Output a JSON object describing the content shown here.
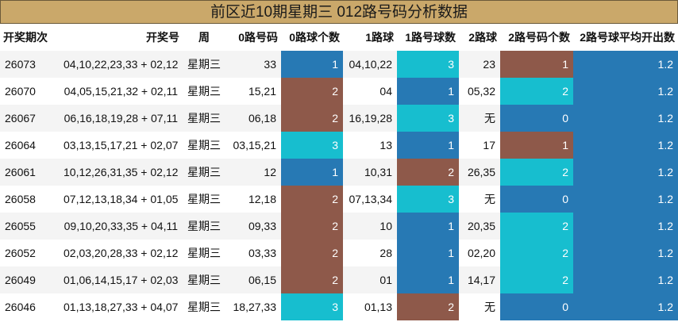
{
  "title": "前区近10期星期三 012路号码分析数据",
  "colors": {
    "title_bg": "#caa86a",
    "blue": "#2779b4",
    "brown": "#8e594a",
    "teal": "#17becf"
  },
  "headers": [
    "开奖期次",
    "开奖号",
    "周",
    "0路号码",
    "0路球个数",
    "1路球",
    "1路号球数",
    "2路球",
    "2路号码个数",
    "2路号球平均开出数"
  ],
  "rows": [
    {
      "issue": "26073",
      "numbers": "04,10,22,23,33 + 02,12",
      "week": "星期三",
      "r0": "33",
      "c0": "1",
      "c0_color": "blue",
      "r1": "04,10,22",
      "c1": "3",
      "c1_color": "teal",
      "r2": "23",
      "c2": "1",
      "c2_color": "brown",
      "avg": "1.2"
    },
    {
      "issue": "26070",
      "numbers": "04,05,15,21,32 + 02,11",
      "week": "星期三",
      "r0": "15,21",
      "c0": "2",
      "c0_color": "brown",
      "r1": "04",
      "c1": "1",
      "c1_color": "blue",
      "r2": "05,32",
      "c2": "2",
      "c2_color": "teal",
      "avg": "1.2"
    },
    {
      "issue": "26067",
      "numbers": "06,16,18,19,28 + 07,11",
      "week": "星期三",
      "r0": "06,18",
      "c0": "2",
      "c0_color": "brown",
      "r1": "16,19,28",
      "c1": "3",
      "c1_color": "teal",
      "r2": "无",
      "c2": "0",
      "c2_color": "blue",
      "avg": "1.2"
    },
    {
      "issue": "26064",
      "numbers": "03,13,15,17,21 + 02,07",
      "week": "星期三",
      "r0": "03,15,21",
      "c0": "3",
      "c0_color": "teal",
      "r1": "13",
      "c1": "1",
      "c1_color": "blue",
      "r2": "17",
      "c2": "1",
      "c2_color": "brown",
      "avg": "1.2"
    },
    {
      "issue": "26061",
      "numbers": "10,12,26,31,35 + 02,12",
      "week": "星期三",
      "r0": "12",
      "c0": "1",
      "c0_color": "blue",
      "r1": "10,31",
      "c1": "2",
      "c1_color": "brown",
      "r2": "26,35",
      "c2": "2",
      "c2_color": "teal",
      "avg": "1.2"
    },
    {
      "issue": "26058",
      "numbers": "07,12,13,18,34 + 01,05",
      "week": "星期三",
      "r0": "12,18",
      "c0": "2",
      "c0_color": "brown",
      "r1": "07,13,34",
      "c1": "3",
      "c1_color": "teal",
      "r2": "无",
      "c2": "0",
      "c2_color": "blue",
      "avg": "1.2"
    },
    {
      "issue": "26055",
      "numbers": "09,10,20,33,35 + 04,11",
      "week": "星期三",
      "r0": "09,33",
      "c0": "2",
      "c0_color": "brown",
      "r1": "10",
      "c1": "1",
      "c1_color": "blue",
      "r2": "20,35",
      "c2": "2",
      "c2_color": "teal",
      "avg": "1.2"
    },
    {
      "issue": "26052",
      "numbers": "02,03,20,28,33 + 02,12",
      "week": "星期三",
      "r0": "03,33",
      "c0": "2",
      "c0_color": "brown",
      "r1": "28",
      "c1": "1",
      "c1_color": "blue",
      "r2": "02,20",
      "c2": "2",
      "c2_color": "teal",
      "avg": "1.2"
    },
    {
      "issue": "26049",
      "numbers": "01,06,14,15,17 + 02,03",
      "week": "星期三",
      "r0": "06,15",
      "c0": "2",
      "c0_color": "brown",
      "r1": "01",
      "c1": "1",
      "c1_color": "blue",
      "r2": "14,17",
      "c2": "2",
      "c2_color": "teal",
      "avg": "1.2"
    },
    {
      "issue": "26046",
      "numbers": "01,13,18,27,33 + 04,07",
      "week": "星期三",
      "r0": "18,27,33",
      "c0": "3",
      "c0_color": "teal",
      "r1": "01,13",
      "c1": "2",
      "c1_color": "brown",
      "r2": "无",
      "c2": "0",
      "c2_color": "blue",
      "avg": "1.2"
    }
  ]
}
